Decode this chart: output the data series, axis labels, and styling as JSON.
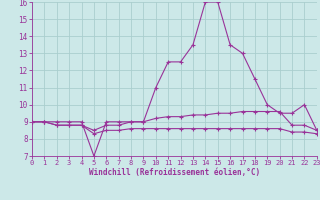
{
  "line1_y": [
    9,
    9,
    9,
    9,
    9,
    7,
    9,
    9,
    9,
    9,
    11,
    12.5,
    12.5,
    13.5,
    16,
    16,
    13.5,
    13,
    11.5,
    10,
    9.5,
    9.5,
    10,
    8.5
  ],
  "line2_y": [
    9,
    9,
    8.8,
    8.8,
    8.8,
    8.5,
    8.8,
    8.8,
    9,
    9,
    9.2,
    9.3,
    9.3,
    9.4,
    9.4,
    9.5,
    9.5,
    9.6,
    9.6,
    9.6,
    9.6,
    8.8,
    8.8,
    8.5
  ],
  "line3_y": [
    9,
    9,
    8.8,
    8.8,
    8.8,
    8.3,
    8.5,
    8.5,
    8.6,
    8.6,
    8.6,
    8.6,
    8.6,
    8.6,
    8.6,
    8.6,
    8.6,
    8.6,
    8.6,
    8.6,
    8.6,
    8.4,
    8.4,
    8.3
  ],
  "x": [
    0,
    1,
    2,
    3,
    4,
    5,
    6,
    7,
    8,
    9,
    10,
    11,
    12,
    13,
    14,
    15,
    16,
    17,
    18,
    19,
    20,
    21,
    22,
    23
  ],
  "line_color": "#993399",
  "bg_color": "#cce8e8",
  "grid_color": "#aacece",
  "xlabel": "Windchill (Refroidissement éolien,°C)",
  "ylim": [
    7,
    16
  ],
  "xlim": [
    0,
    23
  ],
  "yticks": [
    7,
    8,
    9,
    10,
    11,
    12,
    13,
    14,
    15,
    16
  ],
  "xticks": [
    0,
    1,
    2,
    3,
    4,
    5,
    6,
    7,
    8,
    9,
    10,
    11,
    12,
    13,
    14,
    15,
    16,
    17,
    18,
    19,
    20,
    21,
    22,
    23
  ],
  "ytick_labels": [
    "7",
    "8",
    "9",
    "10",
    "11",
    "12",
    "13",
    "14",
    "15",
    "16"
  ],
  "xtick_labels": [
    "0",
    "1",
    "2",
    "3",
    "4",
    "5",
    "6",
    "7",
    "8",
    "9",
    "10",
    "11",
    "12",
    "13",
    "14",
    "15",
    "16",
    "17",
    "18",
    "19",
    "20",
    "21",
    "22",
    "23"
  ]
}
